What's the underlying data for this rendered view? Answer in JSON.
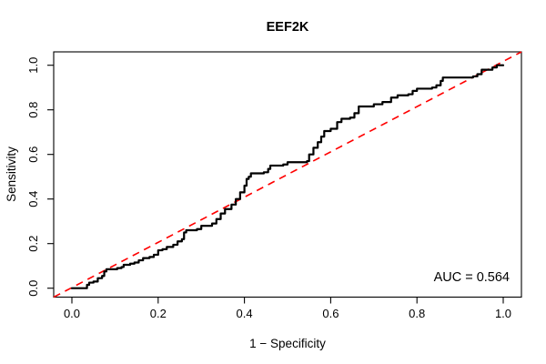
{
  "figure": {
    "title": "EEF2K",
    "xlabel": "1 − Specificity",
    "ylabel": "Sensitivity",
    "auc_label": "AUC = 0.564"
  },
  "chart_data": {
    "type": "line",
    "subtype": "roc-curve",
    "title": "EEF2K",
    "xlabel": "1 − Specificity",
    "ylabel": "Sensitivity",
    "xlim": [
      0,
      1
    ],
    "ylim": [
      0,
      1
    ],
    "x_ticks": [
      0,
      0.2,
      0.4,
      0.6,
      0.8,
      1.0
    ],
    "y_ticks": [
      0,
      0.2,
      0.4,
      0.6,
      0.8,
      1.0
    ],
    "x_tick_labels": [
      "0.0",
      "0.2",
      "0.4",
      "0.6",
      "0.8",
      "1.0"
    ],
    "y_tick_labels": [
      "0.0",
      "0.2",
      "0.4",
      "0.6",
      "0.8",
      "1.0"
    ],
    "grid": false,
    "legend_position": "none",
    "annotations": [
      {
        "text": "AUC = 0.564",
        "position": "bottom-right-inside"
      }
    ],
    "auc": 0.564,
    "series": [
      {
        "name": "ROC curve",
        "color": "#000000",
        "line_style": "solid",
        "line_width": 2.2,
        "step": true,
        "points": [
          [
            0,
            0
          ],
          [
            0.03,
            0
          ],
          [
            0.035,
            0.015
          ],
          [
            0.04,
            0.025
          ],
          [
            0.05,
            0.03
          ],
          [
            0.06,
            0.045
          ],
          [
            0.07,
            0.055
          ],
          [
            0.075,
            0.075
          ],
          [
            0.08,
            0.085
          ],
          [
            0.105,
            0.09
          ],
          [
            0.115,
            0.095
          ],
          [
            0.12,
            0.105
          ],
          [
            0.135,
            0.11
          ],
          [
            0.145,
            0.115
          ],
          [
            0.155,
            0.125
          ],
          [
            0.165,
            0.135
          ],
          [
            0.18,
            0.14
          ],
          [
            0.19,
            0.15
          ],
          [
            0.2,
            0.17
          ],
          [
            0.21,
            0.175
          ],
          [
            0.22,
            0.185
          ],
          [
            0.235,
            0.195
          ],
          [
            0.245,
            0.21
          ],
          [
            0.255,
            0.22
          ],
          [
            0.26,
            0.25
          ],
          [
            0.265,
            0.26
          ],
          [
            0.29,
            0.265
          ],
          [
            0.3,
            0.28
          ],
          [
            0.325,
            0.29
          ],
          [
            0.335,
            0.31
          ],
          [
            0.345,
            0.335
          ],
          [
            0.355,
            0.355
          ],
          [
            0.37,
            0.375
          ],
          [
            0.38,
            0.4
          ],
          [
            0.39,
            0.43
          ],
          [
            0.4,
            0.46
          ],
          [
            0.405,
            0.49
          ],
          [
            0.41,
            0.5
          ],
          [
            0.415,
            0.515
          ],
          [
            0.445,
            0.52
          ],
          [
            0.455,
            0.535
          ],
          [
            0.46,
            0.55
          ],
          [
            0.49,
            0.555
          ],
          [
            0.5,
            0.565
          ],
          [
            0.545,
            0.57
          ],
          [
            0.55,
            0.6
          ],
          [
            0.56,
            0.63
          ],
          [
            0.57,
            0.655
          ],
          [
            0.578,
            0.68
          ],
          [
            0.585,
            0.705
          ],
          [
            0.6,
            0.715
          ],
          [
            0.615,
            0.745
          ],
          [
            0.625,
            0.76
          ],
          [
            0.645,
            0.765
          ],
          [
            0.655,
            0.785
          ],
          [
            0.665,
            0.815
          ],
          [
            0.7,
            0.825
          ],
          [
            0.72,
            0.835
          ],
          [
            0.74,
            0.855
          ],
          [
            0.755,
            0.865
          ],
          [
            0.78,
            0.87
          ],
          [
            0.79,
            0.885
          ],
          [
            0.8,
            0.895
          ],
          [
            0.835,
            0.9
          ],
          [
            0.845,
            0.91
          ],
          [
            0.855,
            0.93
          ],
          [
            0.86,
            0.945
          ],
          [
            0.93,
            0.95
          ],
          [
            0.94,
            0.96
          ],
          [
            0.95,
            0.98
          ],
          [
            0.975,
            0.99
          ],
          [
            0.985,
            1
          ],
          [
            1,
            1
          ]
        ]
      },
      {
        "name": "chance diagonal",
        "color": "#FF0000",
        "line_style": "dashed",
        "line_width": 1.6,
        "step": false,
        "points": [
          [
            0,
            0
          ],
          [
            1,
            1
          ]
        ]
      }
    ]
  },
  "colors": {
    "curve": "#000000",
    "diagonal": "#FF0000",
    "box": "#000000",
    "background": "#FFFFFF",
    "text": "#000000"
  }
}
